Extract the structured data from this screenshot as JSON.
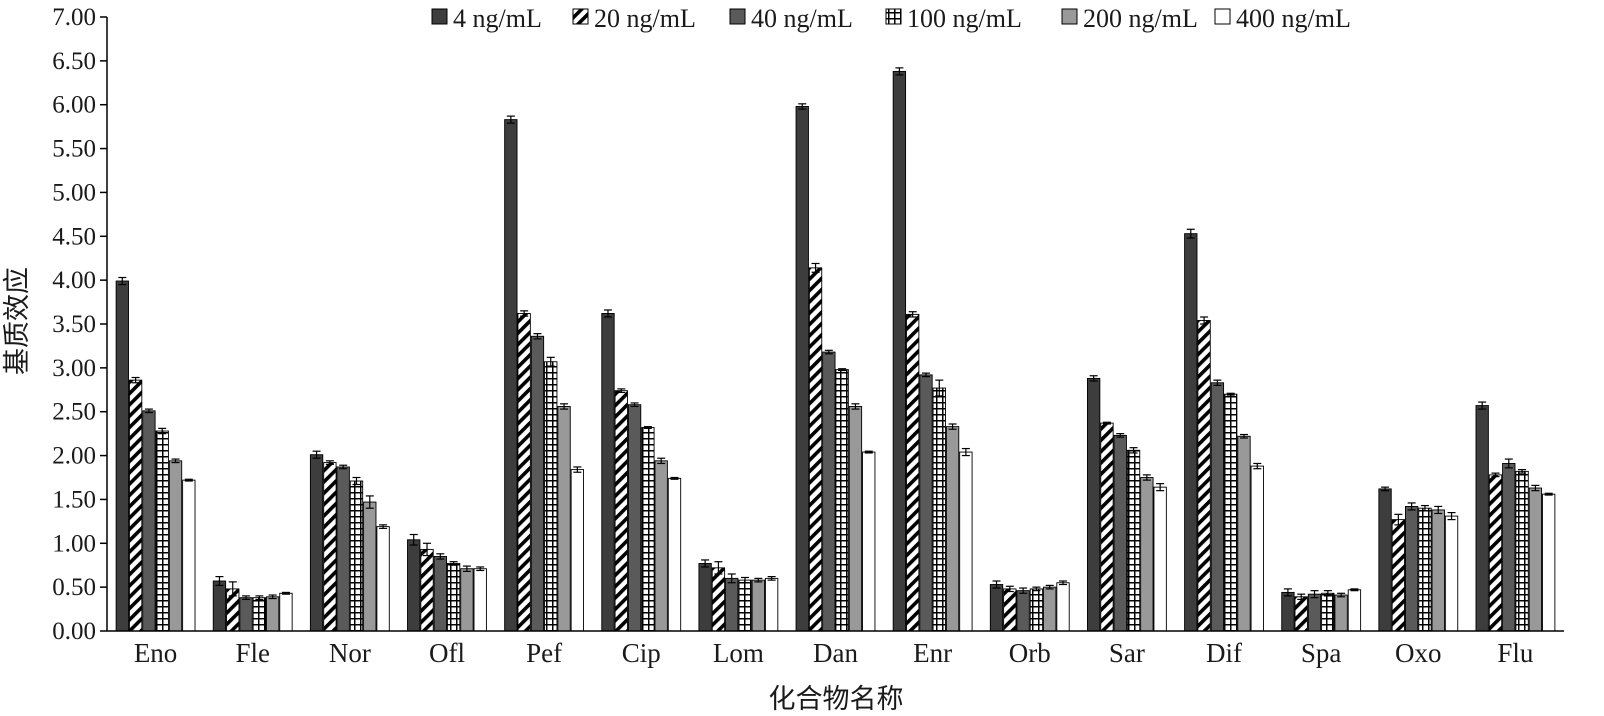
{
  "chart_data": {
    "type": "bar",
    "title": "",
    "xlabel": "化合物名称",
    "ylabel": "基质效应",
    "ylim": [
      0,
      7
    ],
    "yticks": [
      "0.00",
      "0.50",
      "1.00",
      "1.50",
      "2.00",
      "2.50",
      "3.00",
      "3.50",
      "4.00",
      "4.50",
      "5.00",
      "5.50",
      "6.00",
      "6.50",
      "7.00"
    ],
    "grid": false,
    "legend_position": "top",
    "categories": [
      "Eno",
      "Fle",
      "Nor",
      "Ofl",
      "Pef",
      "Cip",
      "Lom",
      "Dan",
      "Enr",
      "Orb",
      "Sar",
      "Dif",
      "Spa",
      "Oxo",
      "Flu"
    ],
    "series": [
      {
        "name": "4 ng/mL",
        "pattern": "solid-dark",
        "color": "#3d3d3d",
        "values": [
          3.99,
          0.57,
          2.01,
          1.04,
          5.83,
          3.62,
          0.77,
          5.98,
          6.38,
          0.53,
          2.88,
          4.53,
          0.44,
          1.62,
          2.57
        ],
        "errors": [
          0.04,
          0.05,
          0.04,
          0.06,
          0.04,
          0.04,
          0.04,
          0.03,
          0.04,
          0.04,
          0.03,
          0.05,
          0.04,
          0.02,
          0.04
        ]
      },
      {
        "name": "20 ng/mL",
        "pattern": "diagonal-stripe",
        "color": "#000000",
        "values": [
          2.86,
          0.48,
          1.92,
          0.93,
          3.62,
          2.74,
          0.72,
          4.14,
          3.61,
          0.48,
          2.37,
          3.54,
          0.39,
          1.27,
          1.78
        ],
        "errors": [
          0.03,
          0.08,
          0.02,
          0.07,
          0.03,
          0.02,
          0.07,
          0.05,
          0.03,
          0.03,
          0.01,
          0.04,
          0.03,
          0.06,
          0.02
        ]
      },
      {
        "name": "40 ng/mL",
        "pattern": "solid-medium",
        "color": "#5a5a5a",
        "values": [
          2.51,
          0.38,
          1.87,
          0.85,
          3.36,
          2.58,
          0.6,
          3.18,
          2.92,
          0.46,
          2.23,
          2.83,
          0.42,
          1.42,
          1.91
        ],
        "errors": [
          0.02,
          0.02,
          0.02,
          0.03,
          0.03,
          0.02,
          0.05,
          0.02,
          0.02,
          0.03,
          0.02,
          0.03,
          0.04,
          0.04,
          0.05
        ]
      },
      {
        "name": "100 ng/mL",
        "pattern": "grid",
        "color": "#000000",
        "values": [
          2.28,
          0.38,
          1.71,
          0.77,
          3.07,
          2.32,
          0.58,
          2.98,
          2.77,
          0.48,
          2.06,
          2.7,
          0.43,
          1.4,
          1.82
        ],
        "errors": [
          0.03,
          0.02,
          0.04,
          0.02,
          0.05,
          0.01,
          0.03,
          0.01,
          0.09,
          0.02,
          0.03,
          0.01,
          0.03,
          0.03,
          0.02
        ]
      },
      {
        "name": "200 ng/mL",
        "pattern": "solid-light",
        "color": "#999999",
        "values": [
          1.94,
          0.39,
          1.47,
          0.71,
          2.56,
          1.94,
          0.58,
          2.56,
          2.33,
          0.5,
          1.75,
          2.22,
          0.41,
          1.38,
          1.63
        ],
        "errors": [
          0.02,
          0.02,
          0.07,
          0.03,
          0.03,
          0.03,
          0.02,
          0.03,
          0.03,
          0.02,
          0.03,
          0.02,
          0.02,
          0.04,
          0.03
        ]
      },
      {
        "name": "400 ng/mL",
        "pattern": "white",
        "color": "#ffffff",
        "values": [
          1.72,
          0.43,
          1.19,
          0.71,
          1.84,
          1.74,
          0.6,
          2.04,
          2.04,
          0.55,
          1.64,
          1.88,
          0.47,
          1.31,
          1.56
        ],
        "errors": [
          0.01,
          0.01,
          0.02,
          0.02,
          0.03,
          0.01,
          0.02,
          0.01,
          0.04,
          0.02,
          0.04,
          0.03,
          0.01,
          0.04,
          0.01
        ]
      }
    ]
  }
}
